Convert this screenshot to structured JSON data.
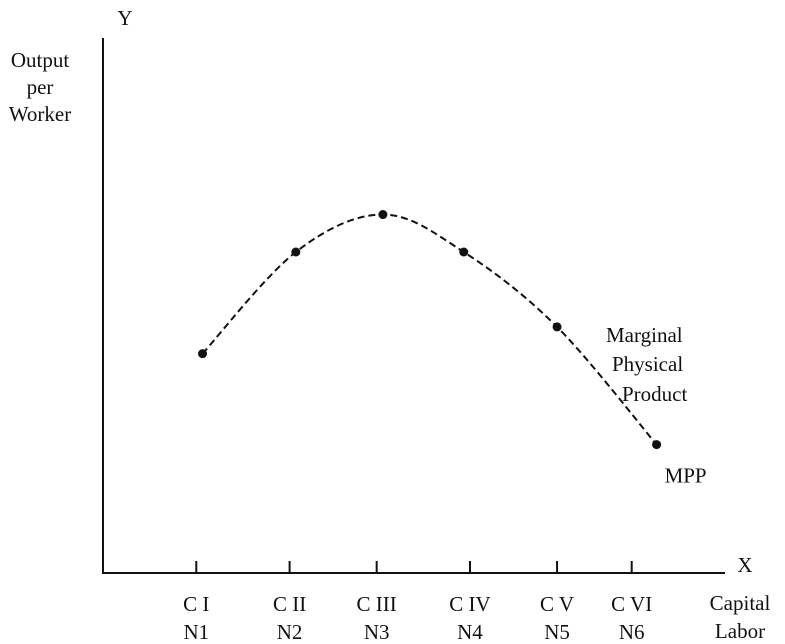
{
  "chart_data": {
    "type": "line",
    "y_axis_letter": "Y",
    "y_axis_title": [
      "Output",
      "per",
      "Worker"
    ],
    "x_axis_letter": "X",
    "x_axis_title": [
      "Capital",
      "Labor"
    ],
    "xlim": [
      0,
      100
    ],
    "ylim": [
      0,
      100
    ],
    "xticks": [
      {
        "value": 15,
        "label": "C I"
      },
      {
        "value": 30,
        "label": "C II"
      },
      {
        "value": 44,
        "label": "C III"
      },
      {
        "value": 59,
        "label": "C IV"
      },
      {
        "value": 73,
        "label": "C V"
      },
      {
        "value": 85,
        "label": "C VI"
      }
    ],
    "labor_labels": [
      "N1",
      "N2",
      "N3",
      "N4",
      "N5",
      "N6"
    ],
    "series": [
      {
        "name": "MPP",
        "color": "#111111",
        "dashed": true,
        "x": [
          16,
          31,
          45,
          58,
          73,
          89
        ],
        "values": [
          41,
          60,
          67,
          60,
          46,
          24
        ]
      }
    ],
    "curve_label": [
      "Marginal",
      "Physical",
      "Product"
    ]
  }
}
